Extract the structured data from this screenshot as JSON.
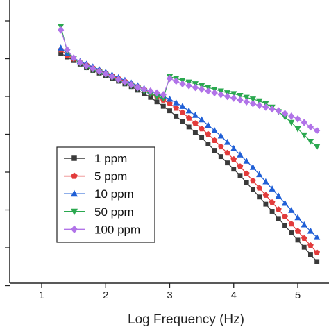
{
  "chart_data": {
    "type": "scatter",
    "xlabel": "Log Frequency (Hz)",
    "ylabel": "",
    "xlim": [
      0.5,
      5.4
    ],
    "xticks": [
      1,
      2,
      3,
      4,
      5
    ],
    "yticks_count": 8,
    "grid": false,
    "legend_position": "lower-left",
    "series": [
      {
        "name": "1 ppm",
        "marker": "square",
        "color": "#3a3a3a",
        "x": [
          1.3,
          1.4,
          1.5,
          1.6,
          1.7,
          1.8,
          1.9,
          2.0,
          2.1,
          2.2,
          2.3,
          2.4,
          2.5,
          2.6,
          2.7,
          2.8,
          2.9,
          3.0,
          3.1,
          3.2,
          3.3,
          3.4,
          3.5,
          3.6,
          3.7,
          3.8,
          3.9,
          4.0,
          4.1,
          4.2,
          4.3,
          4.4,
          4.5,
          4.6,
          4.7,
          4.8,
          4.9,
          5.0,
          5.1,
          5.2,
          5.3
        ],
        "y": [
          0.63,
          0.61,
          0.59,
          0.57,
          0.55,
          0.535,
          0.52,
          0.505,
          0.49,
          0.475,
          0.46,
          0.445,
          0.425,
          0.405,
          0.385,
          0.36,
          0.335,
          0.31,
          0.28,
          0.25,
          0.22,
          0.19,
          0.16,
          0.125,
          0.09,
          0.055,
          0.02,
          -0.015,
          -0.05,
          -0.09,
          -0.13,
          -0.17,
          -0.21,
          -0.25,
          -0.29,
          -0.33,
          -0.37,
          -0.41,
          -0.45,
          -0.49,
          -0.53
        ]
      },
      {
        "name": "5 ppm",
        "marker": "circle",
        "color": "#e23b3b",
        "x": [
          1.3,
          1.4,
          1.5,
          1.6,
          1.7,
          1.8,
          1.9,
          2.0,
          2.1,
          2.2,
          2.3,
          2.4,
          2.5,
          2.6,
          2.7,
          2.8,
          2.9,
          3.0,
          3.1,
          3.2,
          3.3,
          3.4,
          3.5,
          3.6,
          3.7,
          3.8,
          3.9,
          4.0,
          4.1,
          4.2,
          4.3,
          4.4,
          4.5,
          4.6,
          4.7,
          4.8,
          4.9,
          5.0,
          5.1,
          5.2,
          5.3
        ],
        "y": [
          0.65,
          0.62,
          0.6,
          0.58,
          0.565,
          0.55,
          0.535,
          0.52,
          0.505,
          0.49,
          0.475,
          0.46,
          0.445,
          0.43,
          0.41,
          0.39,
          0.37,
          0.35,
          0.325,
          0.3,
          0.27,
          0.24,
          0.21,
          0.18,
          0.145,
          0.11,
          0.075,
          0.04,
          0.0,
          -0.04,
          -0.08,
          -0.12,
          -0.16,
          -0.2,
          -0.24,
          -0.28,
          -0.32,
          -0.36,
          -0.4,
          -0.44,
          -0.48
        ]
      },
      {
        "name": "10 ppm",
        "marker": "triangle-up",
        "color": "#1f5fd6",
        "x": [
          1.3,
          1.4,
          1.5,
          1.6,
          1.7,
          1.8,
          1.9,
          2.0,
          2.1,
          2.2,
          2.3,
          2.4,
          2.5,
          2.6,
          2.7,
          2.8,
          2.9,
          3.0,
          3.1,
          3.2,
          3.3,
          3.4,
          3.5,
          3.6,
          3.7,
          3.8,
          3.9,
          4.0,
          4.1,
          4.2,
          4.3,
          4.4,
          4.5,
          4.6,
          4.7,
          4.8,
          4.9,
          5.0,
          5.1,
          5.2,
          5.3
        ],
        "y": [
          0.66,
          0.63,
          0.605,
          0.585,
          0.57,
          0.555,
          0.54,
          0.525,
          0.51,
          0.495,
          0.48,
          0.465,
          0.45,
          0.435,
          0.42,
          0.405,
          0.39,
          0.375,
          0.355,
          0.335,
          0.31,
          0.285,
          0.26,
          0.23,
          0.2,
          0.17,
          0.135,
          0.1,
          0.065,
          0.03,
          -0.005,
          -0.045,
          -0.085,
          -0.125,
          -0.165,
          -0.205,
          -0.245,
          -0.285,
          -0.325,
          -0.36,
          -0.395
        ]
      },
      {
        "name": "50 ppm",
        "marker": "triangle-down",
        "color": "#2aa84f",
        "x": [
          1.3,
          1.4,
          1.5,
          1.6,
          1.7,
          1.8,
          1.9,
          2.0,
          2.1,
          2.2,
          2.3,
          2.4,
          2.5,
          2.6,
          2.7,
          2.8,
          2.9,
          3.0,
          3.1,
          3.2,
          3.3,
          3.4,
          3.5,
          3.6,
          3.7,
          3.8,
          3.9,
          4.0,
          4.1,
          4.2,
          4.3,
          4.4,
          4.5,
          4.6,
          4.7,
          4.8,
          4.9,
          5.0,
          5.1,
          5.2,
          5.3
        ],
        "y": [
          0.78,
          0.64,
          0.6,
          0.575,
          0.555,
          0.54,
          0.525,
          0.51,
          0.495,
          0.48,
          0.465,
          0.45,
          0.435,
          0.42,
          0.405,
          0.39,
          0.38,
          0.5,
          0.49,
          0.48,
          0.47,
          0.46,
          0.45,
          0.44,
          0.43,
          0.42,
          0.41,
          0.405,
          0.395,
          0.385,
          0.375,
          0.365,
          0.35,
          0.33,
          0.305,
          0.275,
          0.245,
          0.21,
          0.175,
          0.14,
          0.11
        ]
      },
      {
        "name": "100 ppm",
        "marker": "diamond",
        "color": "#b173e8",
        "x": [
          1.3,
          1.4,
          1.5,
          1.6,
          1.7,
          1.8,
          1.9,
          2.0,
          2.1,
          2.2,
          2.3,
          2.4,
          2.5,
          2.6,
          2.7,
          2.8,
          2.9,
          3.0,
          3.1,
          3.2,
          3.3,
          3.4,
          3.5,
          3.6,
          3.7,
          3.8,
          3.9,
          4.0,
          4.1,
          4.2,
          4.3,
          4.4,
          4.5,
          4.6,
          4.7,
          4.8,
          4.9,
          5.0,
          5.1,
          5.2,
          5.3
        ],
        "y": [
          0.76,
          0.65,
          0.605,
          0.58,
          0.56,
          0.545,
          0.53,
          0.515,
          0.5,
          0.485,
          0.47,
          0.455,
          0.44,
          0.43,
          0.42,
          0.41,
          0.4,
          0.49,
          0.475,
          0.46,
          0.45,
          0.44,
          0.43,
          0.42,
          0.41,
          0.4,
          0.39,
          0.38,
          0.37,
          0.36,
          0.35,
          0.34,
          0.33,
          0.32,
          0.31,
          0.295,
          0.28,
          0.265,
          0.245,
          0.22,
          0.2
        ]
      }
    ]
  }
}
